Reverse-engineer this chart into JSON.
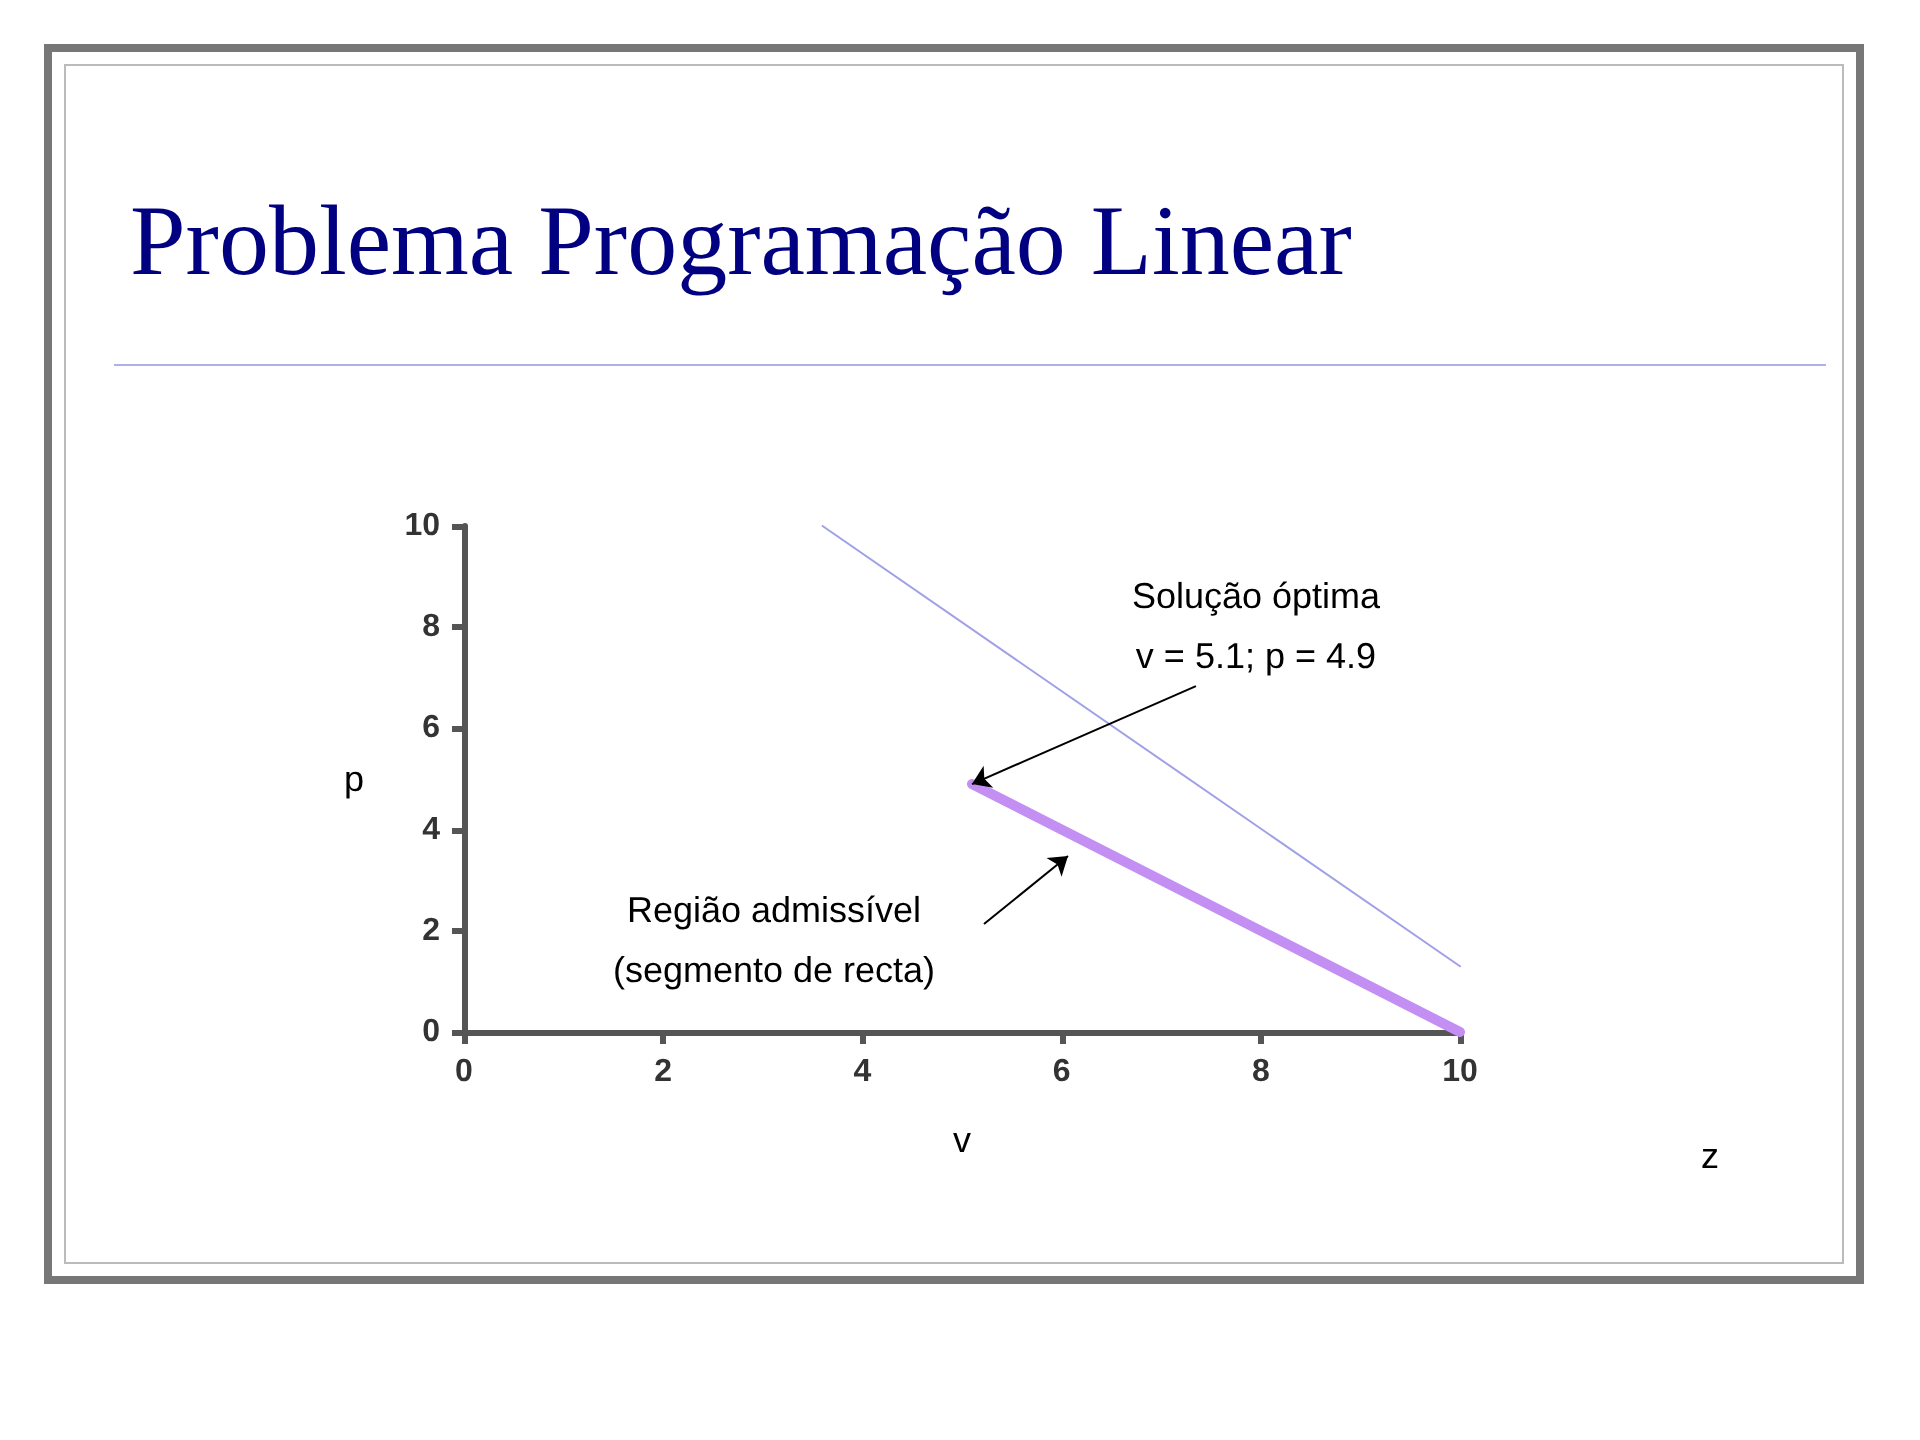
{
  "chart_data": {
    "type": "line",
    "title": "Problema Programação Linear",
    "xlabel": "v",
    "ylabel": "p",
    "xlim": [
      0,
      10
    ],
    "ylim": [
      0,
      10
    ],
    "xticks": [
      0,
      2,
      4,
      6,
      8,
      10
    ],
    "yticks": [
      0,
      2,
      4,
      6,
      8,
      10
    ],
    "grid": false,
    "marker": "none",
    "series": [
      {
        "x": [
          5.1,
          10
        ],
        "values": [
          4.9,
          0
        ],
        "color": "#c38ff2"
      },
      {
        "x": [
          3.6,
          10
        ],
        "values": [
          10,
          1.3
        ],
        "color": "#a0a0e8"
      }
    ],
    "annotations": [
      {
        "text": "Solução óptima\nv = 5.1; p = 4.9",
        "x": 5.1,
        "y": 4.9
      },
      "Região admissível\n(segmento de recta)",
      "z"
    ]
  }
}
